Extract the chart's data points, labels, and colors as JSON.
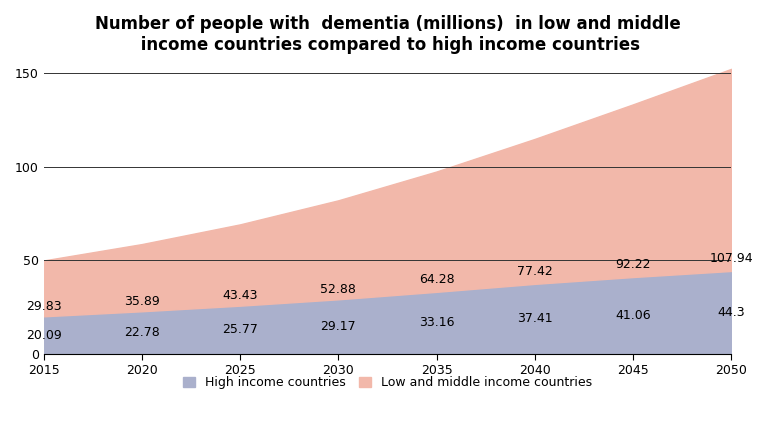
{
  "title": "Number of people with  dementia (millions)  in low and middle\n income countries compared to high income countries",
  "years": [
    2015,
    2020,
    2025,
    2030,
    2035,
    2040,
    2045,
    2050
  ],
  "high_income": [
    20.09,
    22.78,
    25.77,
    29.17,
    33.16,
    37.41,
    41.06,
    44.3
  ],
  "low_mid_income": [
    29.83,
    35.89,
    43.43,
    52.88,
    64.28,
    77.42,
    92.22,
    107.94
  ],
  "high_income_color": "#aab0cc",
  "low_mid_income_color": "#f2b8aa",
  "ylim": [
    0,
    155
  ],
  "yticks": [
    0,
    50,
    100,
    150
  ],
  "legend_high": "High income countries",
  "legend_low_mid": "Low and middle income countries",
  "bg_color": "#ffffff",
  "grid_color": "#333333",
  "title_fontsize": 12,
  "label_fontsize": 9,
  "legend_fontsize": 9,
  "low_mid_label_offsets": [
    2,
    2,
    2,
    2,
    2,
    2,
    2,
    2
  ]
}
